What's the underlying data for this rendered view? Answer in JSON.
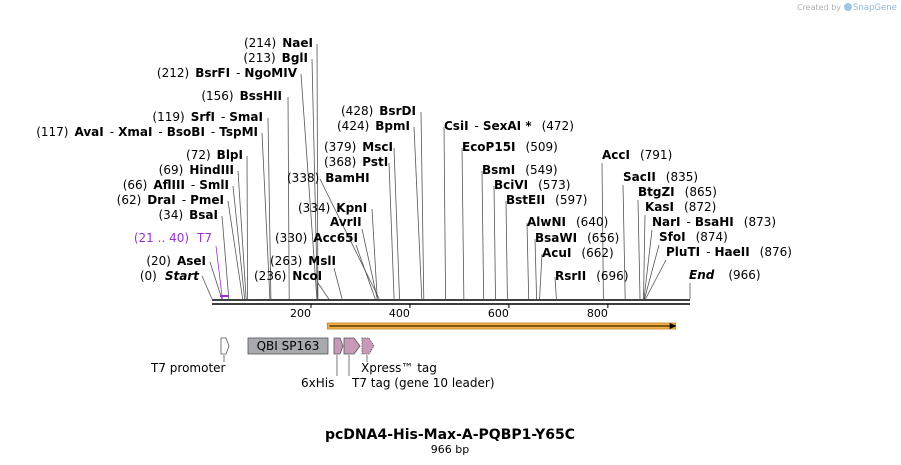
{
  "watermark": {
    "prefix": "Created by",
    "brand": "SnapGene"
  },
  "plasmid": {
    "name": "pcDNA4-His-Max-A-PQBP1-Y65C",
    "length_label": "966 bp",
    "total_bp": 966
  },
  "axis": {
    "ticks": [
      {
        "label": "200",
        "bp": 200
      },
      {
        "label": "400",
        "bp": 400
      },
      {
        "label": "600",
        "bp": 600
      },
      {
        "label": "800",
        "bp": 800
      }
    ]
  },
  "sites": [
    {
      "pos": "(0)",
      "bp": 0,
      "names": [
        "Start"
      ],
      "italic": true
    },
    {
      "pos": "(20)",
      "bp": 20,
      "names": [
        "AseI"
      ]
    },
    {
      "pos": "(34)",
      "bp": 34,
      "names": [
        "BsaI"
      ]
    },
    {
      "pos": "(62)",
      "bp": 62,
      "names": [
        "DraI",
        "PmeI"
      ]
    },
    {
      "pos": "(66)",
      "bp": 66,
      "names": [
        "AflIII",
        "SmlI"
      ]
    },
    {
      "pos": "(69)",
      "bp": 69,
      "names": [
        "HindIII"
      ]
    },
    {
      "pos": "(72)",
      "bp": 72,
      "names": [
        "BlpI"
      ]
    },
    {
      "pos": "(117)",
      "bp": 117,
      "names": [
        "AvaI",
        "XmaI",
        "BsoBI",
        "TspMI"
      ]
    },
    {
      "pos": "(119)",
      "bp": 119,
      "names": [
        "SrfI",
        "SmaI"
      ]
    },
    {
      "pos": "(156)",
      "bp": 156,
      "names": [
        "BssHII"
      ]
    },
    {
      "pos": "(212)",
      "bp": 212,
      "names": [
        "BsrFI",
        "NgoMIV"
      ]
    },
    {
      "pos": "(213)",
      "bp": 213,
      "names": [
        "BglI"
      ]
    },
    {
      "pos": "(214)",
      "bp": 214,
      "names": [
        "NaeI"
      ]
    },
    {
      "pos": "(236)",
      "bp": 236,
      "names": [
        "NcoI"
      ]
    },
    {
      "pos": "(263)",
      "bp": 263,
      "names": [
        "MslI"
      ]
    },
    {
      "pos": "(330)",
      "bp": 330,
      "names": [
        "Acc65I"
      ]
    },
    {
      "pos": "(334)",
      "bp": 334,
      "names": [
        "KpnI"
      ]
    },
    {
      "pos": "(338)",
      "bp": 338,
      "names": [
        "BamHI"
      ]
    },
    {
      "pos": "(379)",
      "bp": 379,
      "names": [
        "MscI"
      ]
    },
    {
      "pos": "(368)",
      "bp": 368,
      "names": [
        "PstI"
      ]
    },
    {
      "pos": "(428)",
      "bp": 428,
      "names": [
        "BsrDI"
      ]
    },
    {
      "pos": "(424)",
      "bp": 424,
      "names": [
        "BpmI"
      ]
    },
    {
      "pos": "(472)",
      "bp": 472,
      "names": [
        "CsiI",
        "SexAI *"
      ]
    },
    {
      "pos": "(509)",
      "bp": 509,
      "names": [
        "EcoP15I"
      ]
    },
    {
      "pos": "(549)",
      "bp": 549,
      "names": [
        "BsmI"
      ]
    },
    {
      "pos": "(573)",
      "bp": 573,
      "names": [
        "BciVI"
      ]
    },
    {
      "pos": "(597)",
      "bp": 597,
      "names": [
        "BstEII"
      ]
    },
    {
      "pos": "(640)",
      "bp": 640,
      "names": [
        "AlwNI"
      ]
    },
    {
      "pos": "(656)",
      "bp": 656,
      "names": [
        "BsaWI"
      ]
    },
    {
      "pos": "(662)",
      "bp": 662,
      "names": [
        "AcuI"
      ]
    },
    {
      "pos": "(696)",
      "bp": 696,
      "names": [
        "RsrII"
      ]
    },
    {
      "pos": "(791)",
      "bp": 791,
      "names": [
        "AccI"
      ]
    },
    {
      "pos": "(835)",
      "bp": 835,
      "names": [
        "SacII"
      ]
    },
    {
      "pos": "(865)",
      "bp": 865,
      "names": [
        "BtgZI"
      ]
    },
    {
      "pos": "(872)",
      "bp": 872,
      "names": [
        "KasI"
      ]
    },
    {
      "pos": "(873)",
      "bp": 873,
      "names": [
        "NarI",
        "BsaHI"
      ]
    },
    {
      "pos": "(874)",
      "bp": 874,
      "names": [
        "SfoI"
      ]
    },
    {
      "pos": "(876)",
      "bp": 876,
      "names": [
        "PluTI",
        "HaeII"
      ]
    },
    {
      "pos": "(966)",
      "bp": 966,
      "names": [
        "End"
      ],
      "italic": true
    },
    {
      "pos": "(21 .. 40)",
      "bp": 21,
      "names": [
        "T7"
      ],
      "primer": true
    }
  ],
  "features": [
    {
      "label": "T7 promoter",
      "kind": "promoter",
      "color": "#ffffff"
    },
    {
      "label": "QBI SP163",
      "kind": "box",
      "color": "#a7a9ac"
    },
    {
      "label": "6xHis",
      "kind": "tag",
      "color": "#c79ab7"
    },
    {
      "label": "T7 tag (gene 10 leader)",
      "kind": "tag",
      "color": "#c79ab7"
    },
    {
      "label": "Xpress™ tag",
      "kind": "tag",
      "color": "#c79ab7"
    }
  ],
  "orf": {
    "color": "#f5b041",
    "start_bp": 233,
    "end_bp": 937
  },
  "colors": {
    "primer": "#9932cc",
    "line": "#555555",
    "backbone": "#000000"
  }
}
